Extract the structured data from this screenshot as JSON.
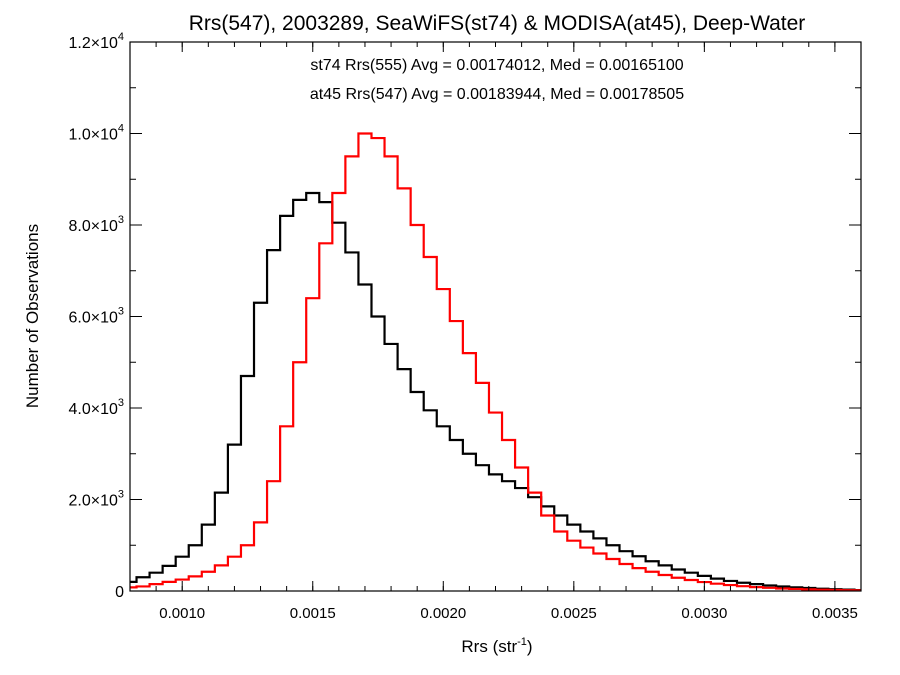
{
  "chart_data": {
    "type": "line",
    "title": "Rrs(547), 2003289, SeaWiFS(st74) & MODISA(at45), Deep-Water",
    "xlabel_main": "Rrs (str",
    "xlabel_sup": "-1",
    "xlabel_close": ")",
    "ylabel": "Number of Observations",
    "xlim": [
      0.0008,
      0.0036
    ],
    "ylim": [
      0,
      12000
    ],
    "grid": false,
    "x_ticks": [
      {
        "value": 0.001,
        "label": "0.0010"
      },
      {
        "value": 0.0015,
        "label": "0.0015"
      },
      {
        "value": 0.002,
        "label": "0.0020"
      },
      {
        "value": 0.0025,
        "label": "0.0025"
      },
      {
        "value": 0.003,
        "label": "0.0030"
      },
      {
        "value": 0.0035,
        "label": "0.0035"
      }
    ],
    "y_ticks": [
      {
        "value": 0,
        "mantissa": "0",
        "exp": ""
      },
      {
        "value": 2000,
        "mantissa": "2.0×10",
        "exp": "3"
      },
      {
        "value": 4000,
        "mantissa": "4.0×10",
        "exp": "3"
      },
      {
        "value": 6000,
        "mantissa": "6.0×10",
        "exp": "3"
      },
      {
        "value": 8000,
        "mantissa": "8.0×10",
        "exp": "3"
      },
      {
        "value": 10000,
        "mantissa": "1.0×10",
        "exp": "4"
      },
      {
        "value": 12000,
        "mantissa": "1.2×10",
        "exp": "4"
      }
    ],
    "annotations": [
      {
        "text": "st74 Rrs(555) Avg = 0.00174012, Med = 0.00165100",
        "color": "#000000"
      },
      {
        "text": "at45 Rrs(547) Avg = 0.00183944, Med = 0.00178505",
        "color": "#ff0000"
      }
    ],
    "series": [
      {
        "color": "#000000",
        "x": [
          0.0008,
          0.00085,
          0.0009,
          0.00095,
          0.001,
          0.00105,
          0.0011,
          0.00115,
          0.0012,
          0.00125,
          0.0013,
          0.00135,
          0.0014,
          0.00145,
          0.0015,
          0.00155,
          0.0016,
          0.00165,
          0.0017,
          0.00175,
          0.0018,
          0.00185,
          0.0019,
          0.00195,
          0.002,
          0.00205,
          0.0021,
          0.00215,
          0.0022,
          0.00225,
          0.0023,
          0.00235,
          0.0024,
          0.00245,
          0.0025,
          0.00255,
          0.0026,
          0.00265,
          0.0027,
          0.00275,
          0.0028,
          0.00285,
          0.0029,
          0.00295,
          0.003,
          0.00305,
          0.0031,
          0.00315,
          0.0032,
          0.00325,
          0.0033,
          0.00335,
          0.0034,
          0.00345,
          0.0035,
          0.00355,
          0.0036
        ],
        "y": [
          200,
          300,
          400,
          550,
          750,
          1000,
          1450,
          2150,
          3200,
          4700,
          6300,
          7450,
          8200,
          8550,
          8700,
          8500,
          8050,
          7400,
          6700,
          6000,
          5400,
          4850,
          4350,
          3950,
          3600,
          3300,
          3000,
          2750,
          2550,
          2400,
          2250,
          2050,
          1850,
          1650,
          1450,
          1300,
          1150,
          1000,
          870,
          760,
          650,
          560,
          470,
          400,
          330,
          270,
          220,
          180,
          150,
          120,
          100,
          80,
          65,
          50,
          40,
          30,
          20
        ]
      },
      {
        "color": "#ff0000",
        "x": [
          0.0008,
          0.00085,
          0.0009,
          0.00095,
          0.001,
          0.00105,
          0.0011,
          0.00115,
          0.0012,
          0.00125,
          0.0013,
          0.00135,
          0.0014,
          0.00145,
          0.0015,
          0.00155,
          0.0016,
          0.00165,
          0.0017,
          0.00175,
          0.0018,
          0.00185,
          0.0019,
          0.00195,
          0.002,
          0.00205,
          0.0021,
          0.00215,
          0.0022,
          0.00225,
          0.0023,
          0.00235,
          0.0024,
          0.00245,
          0.0025,
          0.00255,
          0.0026,
          0.00265,
          0.0027,
          0.00275,
          0.0028,
          0.00285,
          0.0029,
          0.00295,
          0.003,
          0.00305,
          0.0031,
          0.00315,
          0.0032,
          0.00325,
          0.0033,
          0.00335,
          0.0034,
          0.00345,
          0.0035,
          0.00355,
          0.0036
        ],
        "y": [
          80,
          100,
          150,
          200,
          250,
          320,
          420,
          560,
          750,
          1000,
          1500,
          2400,
          3600,
          5000,
          6400,
          7600,
          8700,
          9500,
          10000,
          9900,
          9500,
          8800,
          8000,
          7300,
          6600,
          5900,
          5200,
          4550,
          3900,
          3300,
          2700,
          2150,
          1650,
          1300,
          1100,
          950,
          820,
          700,
          590,
          500,
          420,
          350,
          290,
          240,
          195,
          160,
          130,
          105,
          85,
          70,
          55,
          45,
          35,
          28,
          22,
          18,
          15
        ]
      }
    ]
  }
}
